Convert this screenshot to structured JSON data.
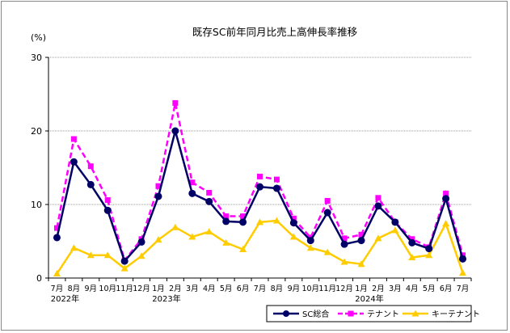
{
  "chart_data": {
    "type": "line",
    "title": "既存SC前年同月比売上高伸長率推移",
    "ylabel": "(%)",
    "ylim": [
      0,
      30
    ],
    "yticks": [
      0,
      10,
      20,
      30
    ],
    "grid": true,
    "legend_position": "bottom-right",
    "categories": [
      "7月",
      "8月",
      "9月",
      "10月",
      "11月",
      "12月",
      "1月",
      "2月",
      "3月",
      "4月",
      "5月",
      "6月",
      "7月",
      "8月",
      "9月",
      "10月",
      "11月",
      "12月",
      "1月",
      "2月",
      "3月",
      "4月",
      "5月",
      "6月",
      "7月"
    ],
    "year_labels": [
      {
        "index": 0,
        "label": "2022年"
      },
      {
        "index": 6,
        "label": "2023年"
      },
      {
        "index": 18,
        "label": "2024年"
      }
    ],
    "series": [
      {
        "name": "SC総合",
        "color": "#000066",
        "marker": "circle",
        "dash": false,
        "values": [
          5.5,
          15.8,
          12.7,
          9.2,
          2.3,
          4.9,
          11.1,
          20.0,
          11.5,
          10.4,
          7.7,
          7.6,
          12.4,
          12.2,
          7.5,
          5.1,
          8.9,
          4.6,
          5.1,
          9.8,
          7.6,
          4.8,
          4.0,
          10.8,
          2.6
        ]
      },
      {
        "name": "テナント",
        "color": "#FF00FF",
        "marker": "square",
        "dash": true,
        "values": [
          6.8,
          18.9,
          15.2,
          10.6,
          2.4,
          5.3,
          12.5,
          23.8,
          13.0,
          11.6,
          8.4,
          8.4,
          13.8,
          13.4,
          8.1,
          5.5,
          10.5,
          5.4,
          5.9,
          10.9,
          7.6,
          5.3,
          4.2,
          11.5,
          3.1
        ]
      },
      {
        "name": "キーテナント",
        "color": "#FFCC00",
        "marker": "triangle",
        "dash": false,
        "values": [
          0.6,
          4.1,
          3.1,
          3.1,
          1.3,
          3.0,
          5.2,
          6.9,
          5.6,
          6.3,
          4.8,
          3.9,
          7.6,
          7.8,
          5.6,
          4.1,
          3.5,
          2.2,
          1.9,
          5.4,
          6.5,
          2.8,
          3.1,
          7.4,
          0.7
        ]
      }
    ]
  }
}
